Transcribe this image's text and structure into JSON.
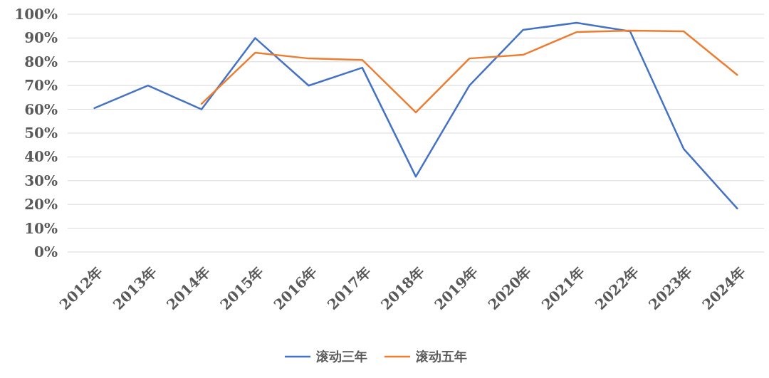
{
  "chart_data": {
    "type": "line",
    "categories": [
      "2012年",
      "2013年",
      "2014年",
      "2015年",
      "2016年",
      "2017年",
      "2018年",
      "2019年",
      "2020年",
      "2021年",
      "2022年",
      "2023年",
      "2024年"
    ],
    "series": [
      {
        "name": "滚动三年",
        "color": "#4472c4",
        "values": [
          60.5,
          70,
          60,
          90,
          70,
          77.5,
          31.7,
          70,
          93.4,
          96.4,
          92.8,
          43.4,
          18.3
        ]
      },
      {
        "name": "滚动五年",
        "color": "#ed7d31",
        "values": [
          null,
          null,
          62.3,
          83.8,
          81.4,
          80.8,
          58.7,
          81.4,
          82.9,
          92.5,
          93.1,
          92.8,
          74.5
        ]
      }
    ],
    "ylim": [
      0,
      100
    ],
    "yticks": [
      {
        "value": 0,
        "label": "0%"
      },
      {
        "value": 10,
        "label": "10%"
      },
      {
        "value": 20,
        "label": "20%"
      },
      {
        "value": 30,
        "label": "30%"
      },
      {
        "value": 40,
        "label": "40%"
      },
      {
        "value": 50,
        "label": "50%"
      },
      {
        "value": 60,
        "label": "60%"
      },
      {
        "value": 70,
        "label": "70%"
      },
      {
        "value": 80,
        "label": "80%"
      },
      {
        "value": 90,
        "label": "90%"
      },
      {
        "value": 100,
        "label": "100%"
      }
    ],
    "grid": "y",
    "legend": "bottom",
    "marker": "none",
    "line_style": "solid"
  }
}
